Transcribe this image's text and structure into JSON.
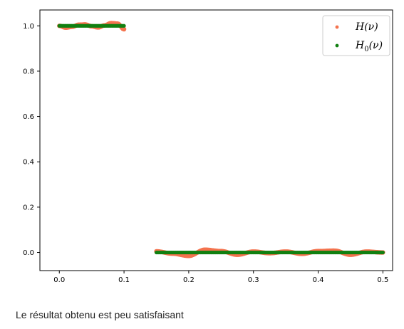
{
  "chart_data": {
    "type": "scatter",
    "title": "",
    "xlabel": "",
    "ylabel": "",
    "xlim": [
      -0.03,
      0.515
    ],
    "ylim": [
      -0.08,
      1.07
    ],
    "xticks": [
      "0.0",
      "0.1",
      "0.2",
      "0.3",
      "0.4",
      "0.5"
    ],
    "yticks": [
      "0.0",
      "0.2",
      "0.4",
      "0.6",
      "0.8",
      "1.0"
    ],
    "grid": false,
    "legend_position": "top-right",
    "series": [
      {
        "name": "H(ν)",
        "color": "#f4734e",
        "segments": [
          {
            "x": [
              0.0,
              0.01,
              0.02,
              0.03,
              0.04,
              0.05,
              0.06,
              0.07,
              0.08,
              0.09,
              0.1
            ],
            "y": [
              1.0,
              0.992,
              0.996,
              1.005,
              1.006,
              0.998,
              0.993,
              1.002,
              1.012,
              1.01,
              0.985
            ]
          },
          {
            "x": [
              0.15,
              0.175,
              0.2,
              0.225,
              0.25,
              0.275,
              0.3,
              0.325,
              0.35,
              0.375,
              0.4,
              0.425,
              0.45,
              0.475,
              0.5
            ],
            "y": [
              0.005,
              -0.005,
              -0.015,
              0.012,
              0.006,
              -0.01,
              0.004,
              -0.003,
              0.004,
              -0.006,
              0.006,
              0.008,
              -0.01,
              0.004,
              0.0
            ]
          }
        ]
      },
      {
        "name": "H0(ν)",
        "color": "#118011",
        "segments": [
          {
            "x": [
              0.0,
              0.1
            ],
            "y": [
              1.0,
              1.0
            ]
          },
          {
            "x": [
              0.15,
              0.5
            ],
            "y": [
              0.0,
              0.0
            ]
          }
        ]
      }
    ],
    "legend": [
      {
        "base": "H",
        "sub": "",
        "arg": "(ν)",
        "color": "#f4734e"
      },
      {
        "base": "H",
        "sub": "0",
        "arg": "(ν)",
        "color": "#118011"
      }
    ]
  },
  "caption": "Le résultat obtenu est peu satisfaisant"
}
